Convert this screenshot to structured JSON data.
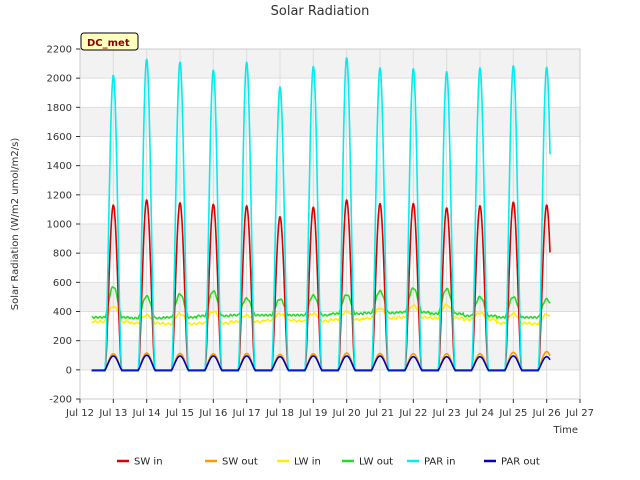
{
  "chart_data": {
    "type": "line",
    "title": "Solar Radiation",
    "xlabel": "Time",
    "ylabel": "Solar Radiation (W/m2 umol/m2/s)",
    "badge": "DC_met",
    "ylim": [
      -200,
      2200
    ],
    "y_ticks": [
      -200,
      0,
      200,
      400,
      600,
      800,
      1000,
      1200,
      1400,
      1600,
      1800,
      2000,
      2200
    ],
    "xlim": [
      12,
      27
    ],
    "x_ticks": [
      {
        "v": 12,
        "label": "Jul 12"
      },
      {
        "v": 13,
        "label": "Jul 13"
      },
      {
        "v": 14,
        "label": "Jul 14"
      },
      {
        "v": 15,
        "label": "Jul 15"
      },
      {
        "v": 16,
        "label": "Jul 16"
      },
      {
        "v": 17,
        "label": "Jul 17"
      },
      {
        "v": 18,
        "label": "Jul 18"
      },
      {
        "v": 19,
        "label": "Jul 19"
      },
      {
        "v": 20,
        "label": "Jul 20"
      },
      {
        "v": 21,
        "label": "Jul 21"
      },
      {
        "v": 22,
        "label": "Jul 22"
      },
      {
        "v": 23,
        "label": "Jul 23"
      },
      {
        "v": 24,
        "label": "Jul 24"
      },
      {
        "v": 25,
        "label": "Jul 25"
      },
      {
        "v": 26,
        "label": "Jul 26"
      },
      {
        "v": 27,
        "label": "Jul 27"
      }
    ],
    "grid": true,
    "legend_position": "bottom",
    "data_start_day": 12.35,
    "data_end_day": 26.1,
    "daily_peaks": {
      "days": [
        13,
        14,
        15,
        16,
        17,
        18,
        19,
        20,
        21,
        22,
        23,
        24,
        25,
        26
      ],
      "SW in": [
        1130,
        1165,
        1145,
        1135,
        1125,
        1050,
        1115,
        1165,
        1140,
        1140,
        1110,
        1125,
        1150,
        1130
      ],
      "SW out": [
        110,
        115,
        112,
        110,
        112,
        105,
        110,
        115,
        112,
        110,
        110,
        110,
        120,
        125
      ],
      "PAR in": [
        2020,
        2130,
        2110,
        2055,
        2110,
        1940,
        2080,
        2140,
        2070,
        2065,
        2045,
        2070,
        2085,
        2075
      ],
      "PAR out": [
        95,
        100,
        95,
        95,
        95,
        90,
        95,
        95,
        95,
        90,
        90,
        90,
        95,
        90
      ],
      "LW in day": [
        435,
        375,
        385,
        400,
        375,
        385,
        385,
        400,
        420,
        440,
        445,
        390,
        385,
        380
      ],
      "LW in night": [
        330,
        320,
        315,
        320,
        330,
        340,
        335,
        345,
        355,
        360,
        355,
        345,
        320,
        315
      ],
      "LW out day": [
        570,
        505,
        520,
        540,
        490,
        485,
        510,
        515,
        540,
        560,
        555,
        500,
        500,
        485
      ],
      "LW out night": [
        360,
        355,
        360,
        370,
        375,
        375,
        375,
        385,
        390,
        395,
        385,
        370,
        360,
        360
      ]
    },
    "series": [
      {
        "name": "SW in",
        "color": "#dd0000"
      },
      {
        "name": "SW out",
        "color": "#ff9900"
      },
      {
        "name": "LW in",
        "color": "#ffee00"
      },
      {
        "name": "LW out",
        "color": "#22dd22"
      },
      {
        "name": "PAR in",
        "color": "#00eeee"
      },
      {
        "name": "PAR out",
        "color": "#0000bb"
      }
    ]
  }
}
